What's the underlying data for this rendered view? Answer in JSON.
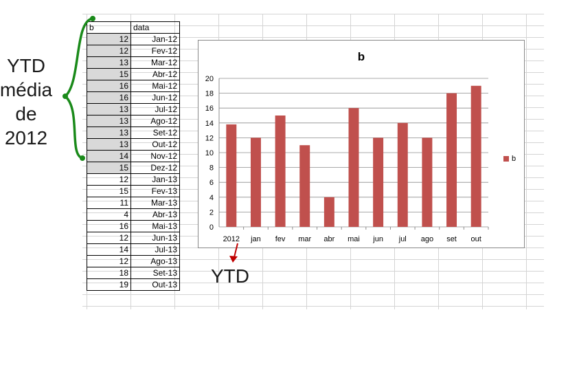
{
  "table": {
    "headers": [
      "b",
      "data"
    ],
    "rows": [
      {
        "b": "12",
        "data": "Jan-12"
      },
      {
        "b": "12",
        "data": "Fev-12"
      },
      {
        "b": "13",
        "data": "Mar-12"
      },
      {
        "b": "15",
        "data": "Abr-12"
      },
      {
        "b": "16",
        "data": "Mai-12"
      },
      {
        "b": "16",
        "data": "Jun-12"
      },
      {
        "b": "13",
        "data": "Jul-12"
      },
      {
        "b": "13",
        "data": "Ago-12"
      },
      {
        "b": "13",
        "data": "Set-12"
      },
      {
        "b": "13",
        "data": "Out-12"
      },
      {
        "b": "14",
        "data": "Nov-12"
      },
      {
        "b": "15",
        "data": "Dez-12"
      },
      {
        "b": "12",
        "data": "Jan-13"
      },
      {
        "b": "15",
        "data": "Fev-13"
      },
      {
        "b": "11",
        "data": "Mar-13"
      },
      {
        "b": "4",
        "data": "Abr-13"
      },
      {
        "b": "16",
        "data": "Mai-13"
      },
      {
        "b": "12",
        "data": "Jun-13"
      },
      {
        "b": "14",
        "data": "Jul-13"
      },
      {
        "b": "12",
        "data": "Ago-13"
      },
      {
        "b": "18",
        "data": "Set-13"
      },
      {
        "b": "19",
        "data": "Out-13"
      }
    ]
  },
  "annotations": {
    "left_lines": [
      "YTD",
      "média",
      "de",
      "2012"
    ],
    "bottom": "YTD",
    "bracket_color": "#1a8a1a",
    "arrow_color": "#c00000"
  },
  "chart_data": {
    "type": "bar",
    "title": "b",
    "categories": [
      "2012",
      "jan",
      "fev",
      "mar",
      "abr",
      "mai",
      "jun",
      "jul",
      "ago",
      "set",
      "out"
    ],
    "series": [
      {
        "name": "b",
        "values": [
          13.8,
          12,
          15,
          11,
          4,
          16,
          12,
          14,
          12,
          18,
          19
        ],
        "color": "#c0504d"
      }
    ],
    "ylim": [
      0,
      20
    ],
    "yticks": [
      0,
      2,
      4,
      6,
      8,
      10,
      12,
      14,
      16,
      18,
      20
    ],
    "grid": true,
    "legend": "right"
  }
}
